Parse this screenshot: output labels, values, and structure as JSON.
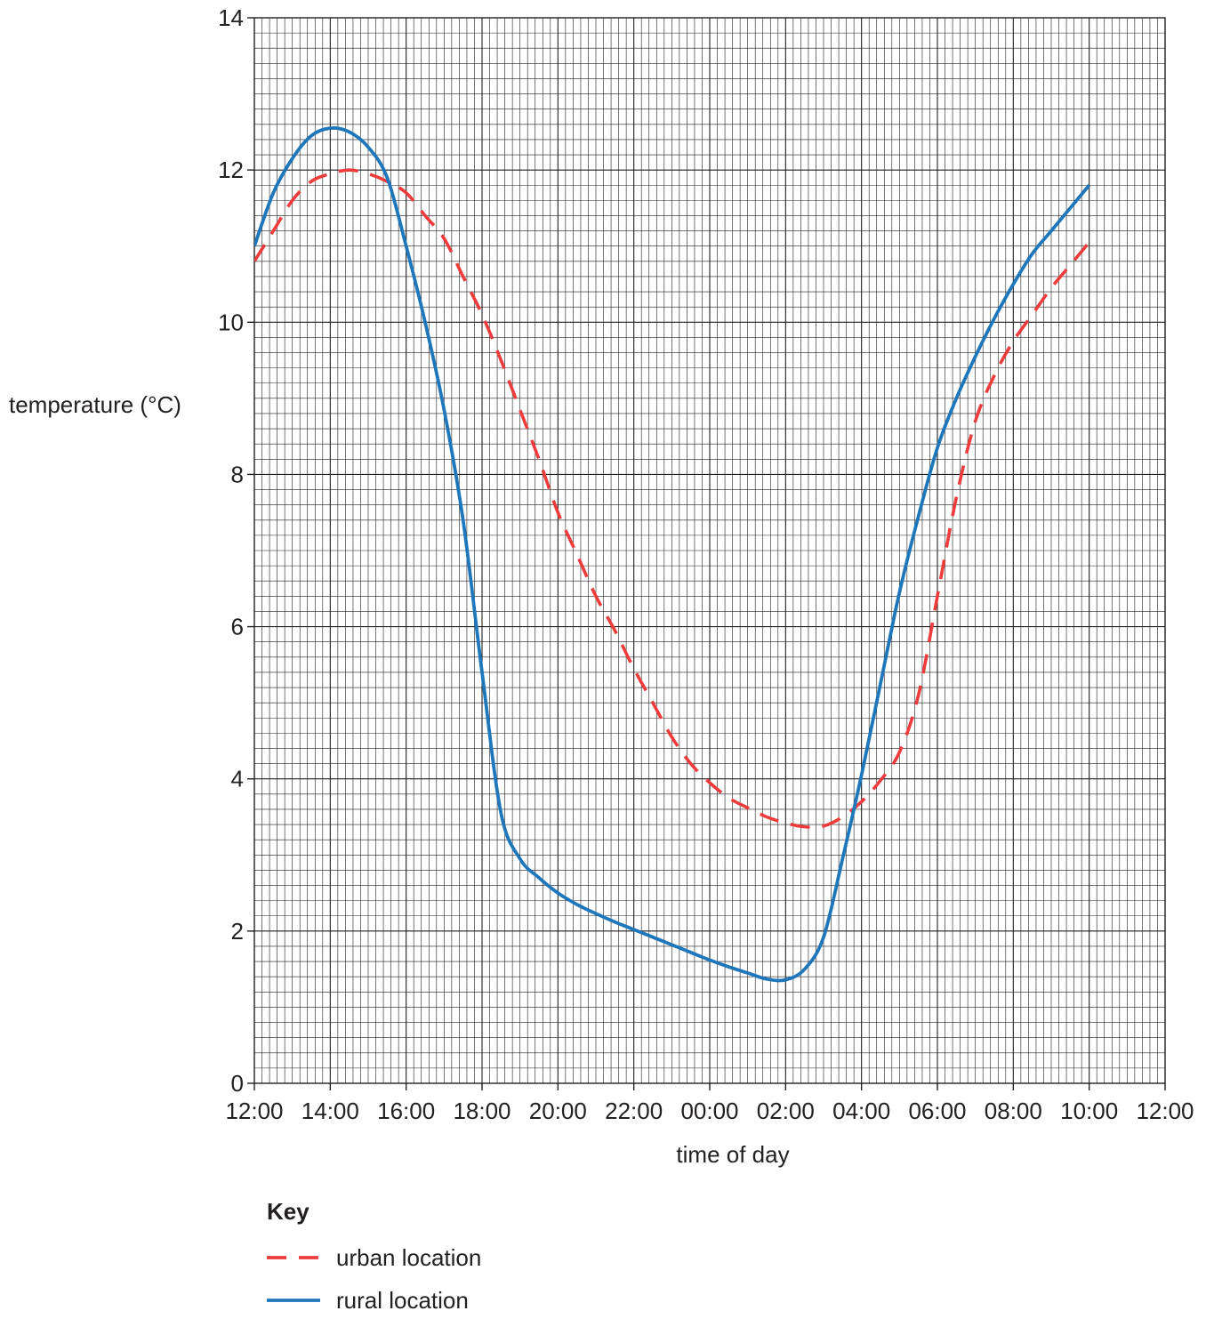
{
  "chart_data": {
    "type": "line",
    "title": "",
    "xlabel": "time of day",
    "ylabel": "temperature (°C)",
    "x_unit": "hours",
    "xlim_hours": [
      0,
      24
    ],
    "ylim": [
      0,
      14
    ],
    "x_tick_labels": [
      "12:00",
      "14:00",
      "16:00",
      "18:00",
      "20:00",
      "22:00",
      "00:00",
      "02:00",
      "04:00",
      "06:00",
      "08:00",
      "10:00",
      "12:00"
    ],
    "y_ticks": [
      0,
      2,
      4,
      6,
      8,
      10,
      12,
      14
    ],
    "grid": "on (minor and major)",
    "legend": {
      "title": "Key",
      "placement": "bottom-left"
    },
    "series": [
      {
        "name": "urban location",
        "key": "urban",
        "color": "#ee3b3b",
        "style": "dashed",
        "points": [
          [
            0,
            10.8
          ],
          [
            0.5,
            11.2
          ],
          [
            1,
            11.6
          ],
          [
            1.5,
            11.85
          ],
          [
            2,
            11.95
          ],
          [
            2.5,
            12.0
          ],
          [
            3,
            11.95
          ],
          [
            3.5,
            11.85
          ],
          [
            4,
            11.7
          ],
          [
            4.5,
            11.4
          ],
          [
            5,
            11.1
          ],
          [
            5.5,
            10.6
          ],
          [
            6,
            10.1
          ],
          [
            6.5,
            9.5
          ],
          [
            7,
            8.85
          ],
          [
            7.5,
            8.2
          ],
          [
            8,
            7.5
          ],
          [
            8.5,
            6.95
          ],
          [
            9,
            6.4
          ],
          [
            9.5,
            5.95
          ],
          [
            10,
            5.45
          ],
          [
            10.5,
            5.0
          ],
          [
            11,
            4.55
          ],
          [
            11.5,
            4.2
          ],
          [
            12,
            3.95
          ],
          [
            12.5,
            3.75
          ],
          [
            13,
            3.62
          ],
          [
            13.5,
            3.5
          ],
          [
            14,
            3.42
          ],
          [
            14.5,
            3.37
          ],
          [
            15,
            3.38
          ],
          [
            15.5,
            3.5
          ],
          [
            16,
            3.7
          ],
          [
            16.5,
            3.98
          ],
          [
            17,
            4.35
          ],
          [
            17.5,
            5.1
          ],
          [
            18,
            6.4
          ],
          [
            18.5,
            7.7
          ],
          [
            19,
            8.7
          ],
          [
            19.5,
            9.3
          ],
          [
            20,
            9.75
          ],
          [
            20.5,
            10.1
          ],
          [
            21,
            10.45
          ],
          [
            21.5,
            10.75
          ],
          [
            22,
            11.05
          ]
        ]
      },
      {
        "name": "rural location",
        "key": "rural",
        "color": "#1f77bb",
        "style": "solid",
        "points": [
          [
            0,
            11.0
          ],
          [
            0.5,
            11.7
          ],
          [
            1,
            12.15
          ],
          [
            1.5,
            12.45
          ],
          [
            2,
            12.55
          ],
          [
            2.5,
            12.5
          ],
          [
            3,
            12.3
          ],
          [
            3.5,
            11.9
          ],
          [
            4,
            11.0
          ],
          [
            4.5,
            10.0
          ],
          [
            5,
            8.85
          ],
          [
            5.5,
            7.4
          ],
          [
            6,
            5.4
          ],
          [
            6.5,
            3.55
          ],
          [
            7,
            2.95
          ],
          [
            7.5,
            2.7
          ],
          [
            8,
            2.5
          ],
          [
            8.5,
            2.35
          ],
          [
            9,
            2.23
          ],
          [
            9.5,
            2.12
          ],
          [
            10,
            2.02
          ],
          [
            10.5,
            1.92
          ],
          [
            11,
            1.82
          ],
          [
            11.5,
            1.72
          ],
          [
            12,
            1.62
          ],
          [
            12.5,
            1.53
          ],
          [
            13,
            1.45
          ],
          [
            13.5,
            1.37
          ],
          [
            14,
            1.36
          ],
          [
            14.5,
            1.5
          ],
          [
            15,
            1.92
          ],
          [
            15.5,
            2.95
          ],
          [
            16,
            4.05
          ],
          [
            16.5,
            5.25
          ],
          [
            17,
            6.45
          ],
          [
            17.5,
            7.45
          ],
          [
            18,
            8.35
          ],
          [
            18.5,
            9.0
          ],
          [
            19,
            9.55
          ],
          [
            19.5,
            10.05
          ],
          [
            20,
            10.5
          ],
          [
            20.5,
            10.9
          ],
          [
            21,
            11.2
          ],
          [
            21.5,
            11.5
          ],
          [
            22,
            11.8
          ]
        ]
      }
    ]
  }
}
